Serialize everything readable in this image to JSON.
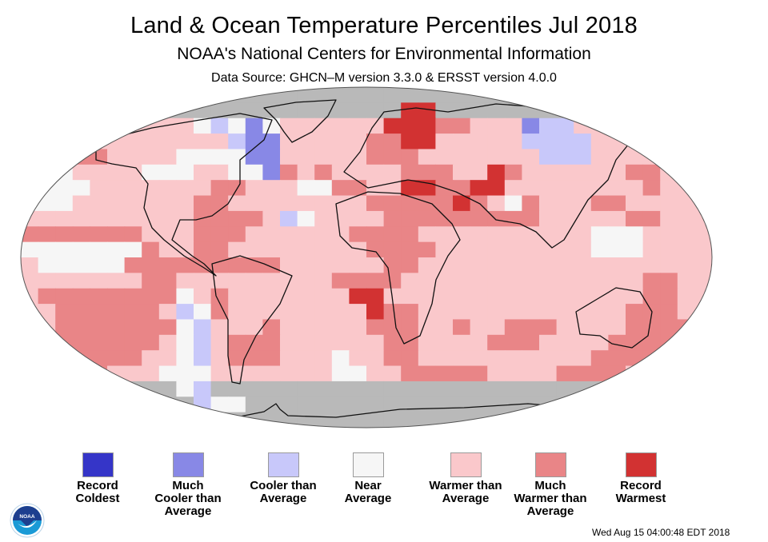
{
  "header": {
    "title": "Land & Ocean Temperature Percentiles Jul 2018",
    "subtitle": "NOAA's National Centers for Environmental Information",
    "source": "Data Source: GHCN–M version 3.3.0 & ERSST version 4.0.0"
  },
  "legend": [
    {
      "key": "rc",
      "label": "Record Coldest",
      "lines": [
        "Record",
        "Coldest"
      ],
      "color": "#3535c8"
    },
    {
      "key": "mc",
      "label": "Much Cooler than Average",
      "lines": [
        "Much",
        "Cooler than",
        "Average"
      ],
      "color": "#8888e6"
    },
    {
      "key": "c",
      "label": "Cooler than Average",
      "lines": [
        "Cooler than",
        "Average"
      ],
      "color": "#c8c8fa"
    },
    {
      "key": "n",
      "label": "Near Average",
      "lines": [
        "Near",
        "Average"
      ],
      "color": "#f6f6f6"
    },
    {
      "key": "w",
      "label": "Warmer than Average",
      "lines": [
        "Warmer than",
        "Average"
      ],
      "color": "#fac8cb"
    },
    {
      "key": "mw",
      "label": "Much Warmer than Average",
      "lines": [
        "Much",
        "Warmer than",
        "Average"
      ],
      "color": "#e98587"
    },
    {
      "key": "rw",
      "label": "Record Warmest",
      "lines": [
        "Record",
        "Warmest"
      ],
      "color": "#d23232"
    }
  ],
  "no_data_color": "#b9b9b9",
  "timestamp": "Wed Aug 15 04:00:48 EDT 2018",
  "logo": {
    "text": "NOAA",
    "icon": "noaa-logo-icon"
  },
  "map": {
    "projection": "Robinson",
    "grid_legend": "0=no data, 1=record coldest, 2=much cooler, 3=cooler, 4=near average, 5=warmer, 6=much warmer, 7=record warmest",
    "rows": [
      "0000000000000000000000000000000000000000",
      "0000000000000000000000770000000000000000",
      "0555445555434245555557776655523355555500",
      "0565555555553225555566775555533335555550",
      "5566655554444225555566655555553335555555",
      "5545555444554426565555666557655555566555",
      "4444555555566555446655776677555555556555",
      "4445555555665555555566666765465556655555",
      "5555555555666653455556666666665555566555",
      "6666666555666555555666655555555554445555",
      "4444444655665555555566665555555554445555",
      "5444446666666665555556655555555555555555",
      "5555555665555555556666555555555555556655",
      "5666666664565555555775555555555555556655",
      "5566666653465555555576655555555555566655",
      "5566666664355565555566655655666555566665",
      "5766666654356665555556655556665555666665",
      "5776666554356665554556655555555556666655",
      "5666655544455555554455666665555666655555",
      "0000000004300000000000000000000000000000",
      "0000000000344000000000000000000000000000",
      "0000000000000000000000000000000000000000"
    ]
  }
}
